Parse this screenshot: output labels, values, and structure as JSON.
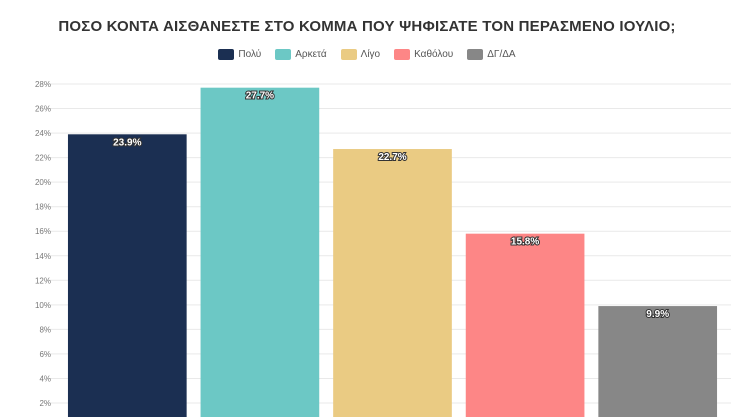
{
  "chart_data": {
    "type": "bar",
    "title": "ΠΟΣΟ ΚΟΝΤΑ ΑΙΣΘΑΝΕΣΤΕ ΣΤΟ ΚΟΜΜΑ ΠΟΥ ΨΗΦΙΣΑΤΕ ΤΟΝ ΠΕΡΑΣΜΕΝΟ ΙΟΥΛΙΟ;",
    "xlabel": "",
    "ylabel": "",
    "ylim": [
      0,
      28
    ],
    "yticks": [
      2,
      4,
      6,
      8,
      10,
      12,
      14,
      16,
      18,
      20,
      22,
      24,
      26,
      28
    ],
    "ytick_labels": [
      "2%",
      "4%",
      "6%",
      "8%",
      "10%",
      "12%",
      "14%",
      "16%",
      "18%",
      "20%",
      "22%",
      "24%",
      "26%",
      "28%"
    ],
    "grid": true,
    "legend_position": "top-center",
    "categories": [
      "Πολύ",
      "Αρκετά",
      "Λίγο",
      "Καθόλου",
      "ΔΓ/ΔΑ"
    ],
    "values": [
      23.9,
      27.7,
      22.7,
      15.8,
      9.9
    ],
    "data_labels": [
      "23.9%",
      "27.7%",
      "22.7%",
      "15.8%",
      "9.9%"
    ],
    "colors": [
      "#1b2f52",
      "#6cc8c5",
      "#eacb83",
      "#fd8686",
      "#878787"
    ]
  }
}
